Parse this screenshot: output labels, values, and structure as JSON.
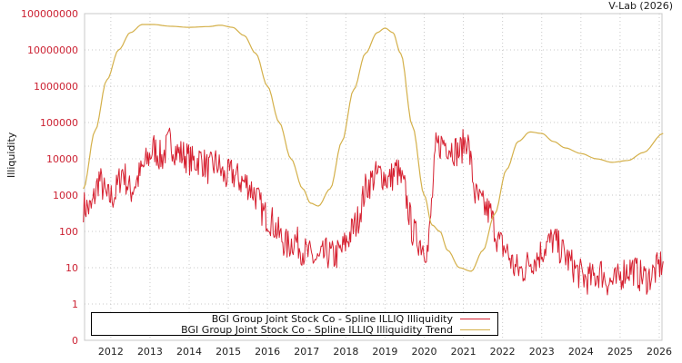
{
  "credit": "V-Lab (2026)",
  "chart_data": {
    "type": "line",
    "title": "",
    "xlabel": "",
    "ylabel": "Illiquidity",
    "yscale": "log",
    "y_tick_labels": [
      "0",
      "1",
      "10",
      "100",
      "1000",
      "10000",
      "100000",
      "1000000",
      "10000000",
      "100000000"
    ],
    "x_tick_labels": [
      "2012",
      "2013",
      "2014",
      "2015",
      "2016",
      "2017",
      "2018",
      "2019",
      "2020",
      "2021",
      "2022",
      "2023",
      "2024",
      "2025",
      "2026"
    ],
    "xlim": [
      2011.3,
      2026.1
    ],
    "ylim": [
      0.1,
      100000000
    ],
    "grid": true,
    "legend_position": "bottom-left",
    "colors": {
      "illiquidity": "#d62030",
      "trend": "#d4b04a",
      "tick_label": "#cc2233"
    },
    "series": [
      {
        "name": "BGI Group Joint Stock Co - Spline ILLIQ Illiquidity",
        "x": [
          2011.3,
          2011.5,
          2011.7,
          2011.9,
          2012.1,
          2012.3,
          2012.5,
          2012.7,
          2012.9,
          2013.1,
          2013.3,
          2013.5,
          2013.7,
          2013.9,
          2014.1,
          2014.3,
          2014.5,
          2014.7,
          2014.9,
          2015.1,
          2015.3,
          2015.5,
          2015.7,
          2015.9,
          2016.1,
          2016.3,
          2016.5,
          2016.7,
          2016.9,
          2017.1,
          2017.3,
          2017.5,
          2017.7,
          2017.9,
          2018.1,
          2018.3,
          2018.5,
          2018.7,
          2018.9,
          2019.1,
          2019.3,
          2019.5,
          2019.7,
          2019.9,
          2020.1,
          2020.3,
          2020.5,
          2020.7,
          2020.9,
          2021.1,
          2021.3,
          2021.5,
          2021.7,
          2021.9,
          2022.1,
          2022.3,
          2022.5,
          2022.7,
          2022.9,
          2023.1,
          2023.3,
          2023.5,
          2023.7,
          2023.9,
          2024.1,
          2024.3,
          2024.5,
          2024.7,
          2024.9,
          2025.1,
          2025.3,
          2025.5,
          2025.7,
          2025.9,
          2026.1
        ],
        "values": [
          500,
          400,
          3000,
          800,
          1000,
          5000,
          1200,
          3000,
          8000,
          20000,
          10000,
          30000,
          15000,
          12000,
          8000,
          10000,
          5000,
          8000,
          3000,
          4000,
          2500,
          2000,
          1000,
          300,
          200,
          80,
          40,
          60,
          30,
          20,
          15,
          25,
          20,
          30,
          80,
          200,
          1500,
          3000,
          4000,
          2500,
          5000,
          1500,
          100,
          50,
          30,
          20000,
          30000,
          20000,
          15000,
          40000,
          1000,
          500,
          300,
          50,
          30,
          10,
          8,
          15,
          20,
          40,
          60,
          30,
          15,
          8,
          5,
          5,
          8,
          4,
          4,
          8,
          10,
          6,
          5,
          8,
          15
        ]
      },
      {
        "name": "BGI Group Joint Stock Co - Spline ILLIQ Illiquidity Trend",
        "x": [
          2011.3,
          2011.6,
          2011.9,
          2012.2,
          2012.5,
          2012.8,
          2013.1,
          2013.5,
          2014.0,
          2014.5,
          2014.8,
          2015.1,
          2015.4,
          2015.7,
          2016.0,
          2016.3,
          2016.6,
          2016.9,
          2017.1,
          2017.3,
          2017.6,
          2017.9,
          2018.2,
          2018.5,
          2018.8,
          2019.0,
          2019.2,
          2019.4,
          2019.7,
          2020.0,
          2020.2,
          2020.4,
          2020.6,
          2020.9,
          2021.2,
          2021.5,
          2021.8,
          2022.1,
          2022.4,
          2022.7,
          2023.0,
          2023.3,
          2023.6,
          2024.0,
          2024.4,
          2024.8,
          2025.2,
          2025.6,
          2026.1
        ],
        "values": [
          1500,
          60000,
          1500000,
          10000000,
          30000000,
          50000000,
          50000000,
          45000000,
          42000000,
          44000000,
          48000000,
          42000000,
          25000000,
          8000000,
          1000000,
          100000,
          10000,
          1500,
          600,
          500,
          1500,
          30000,
          800000,
          8000000,
          30000000,
          40000000,
          30000000,
          8000000,
          80000,
          1000,
          150,
          100,
          30,
          10,
          8,
          30,
          300,
          5000,
          30000,
          55000,
          50000,
          30000,
          20000,
          14000,
          10000,
          8000,
          9000,
          15000,
          50000
        ]
      }
    ]
  },
  "legend": {
    "items": [
      {
        "label": "BGI Group Joint Stock Co - Spline ILLIQ Illiquidity",
        "color": "#d62030"
      },
      {
        "label": "BGI Group Joint Stock Co - Spline ILLIQ Illiquidity Trend",
        "color": "#d4b04a"
      }
    ]
  }
}
